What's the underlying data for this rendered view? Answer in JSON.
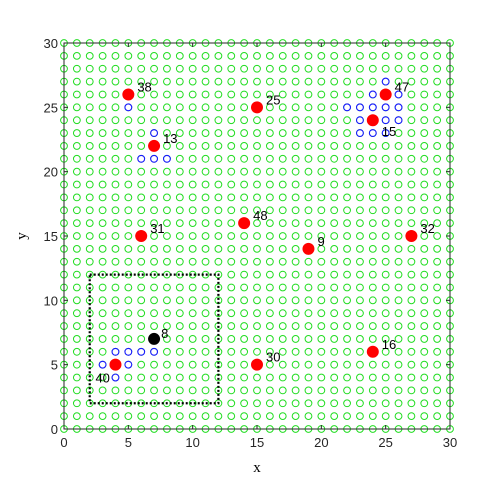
{
  "chart_data": {
    "type": "scatter",
    "title": "",
    "xlabel": "x",
    "ylabel": "y",
    "xlim": [
      0,
      30
    ],
    "ylim": [
      0,
      30
    ],
    "x_ticks": [
      0,
      5,
      10,
      15,
      20,
      25,
      30
    ],
    "y_ticks": [
      0,
      5,
      10,
      15,
      20,
      25,
      30
    ],
    "grid": false,
    "background_grid_points": {
      "marker": "open-circle",
      "color": "#22dd22",
      "x_range": [
        0,
        30
      ],
      "y_range": [
        0,
        30
      ],
      "spacing": 1
    },
    "labeled_points": [
      {
        "label": "38",
        "x": 5,
        "y": 26
      },
      {
        "label": "25",
        "x": 15,
        "y": 25
      },
      {
        "label": "47",
        "x": 25,
        "y": 26
      },
      {
        "label": "15",
        "x": 24,
        "y": 24
      },
      {
        "label": "13",
        "x": 7,
        "y": 22
      },
      {
        "label": "31",
        "x": 6,
        "y": 15
      },
      {
        "label": "48",
        "x": 14,
        "y": 16
      },
      {
        "label": "9",
        "x": 19,
        "y": 14
      },
      {
        "label": "32",
        "x": 27,
        "y": 15
      },
      {
        "label": "30",
        "x": 15,
        "y": 5
      },
      {
        "label": "16",
        "x": 24,
        "y": 6
      },
      {
        "label": "40",
        "x": 4,
        "y": 5
      },
      {
        "label": "8",
        "x": 7,
        "y": 7,
        "highlight": true
      }
    ],
    "blue_points": [
      [
        5,
        25
      ],
      [
        7,
        23
      ],
      [
        6,
        21
      ],
      [
        7,
        21
      ],
      [
        8,
        21
      ],
      [
        25,
        27
      ],
      [
        24,
        26
      ],
      [
        26,
        26
      ],
      [
        22,
        25
      ],
      [
        23,
        25
      ],
      [
        24,
        25
      ],
      [
        25,
        25
      ],
      [
        26,
        25
      ],
      [
        23,
        24
      ],
      [
        25,
        24
      ],
      [
        26,
        24
      ],
      [
        23,
        23
      ],
      [
        24,
        23
      ],
      [
        25,
        23
      ],
      [
        4,
        6
      ],
      [
        5,
        6
      ],
      [
        6,
        6
      ],
      [
        7,
        6
      ],
      [
        3,
        5
      ],
      [
        5,
        5
      ],
      [
        4,
        4
      ]
    ],
    "region_box": {
      "x": [
        2,
        12
      ],
      "y": [
        2,
        12
      ],
      "style": "dotted"
    },
    "colors": {
      "grid_point": "#22dd22",
      "blue_point": "#1a1aff",
      "red_point": "#ff0000",
      "highlight_point": "#000000",
      "region_box": "#000000"
    }
  }
}
